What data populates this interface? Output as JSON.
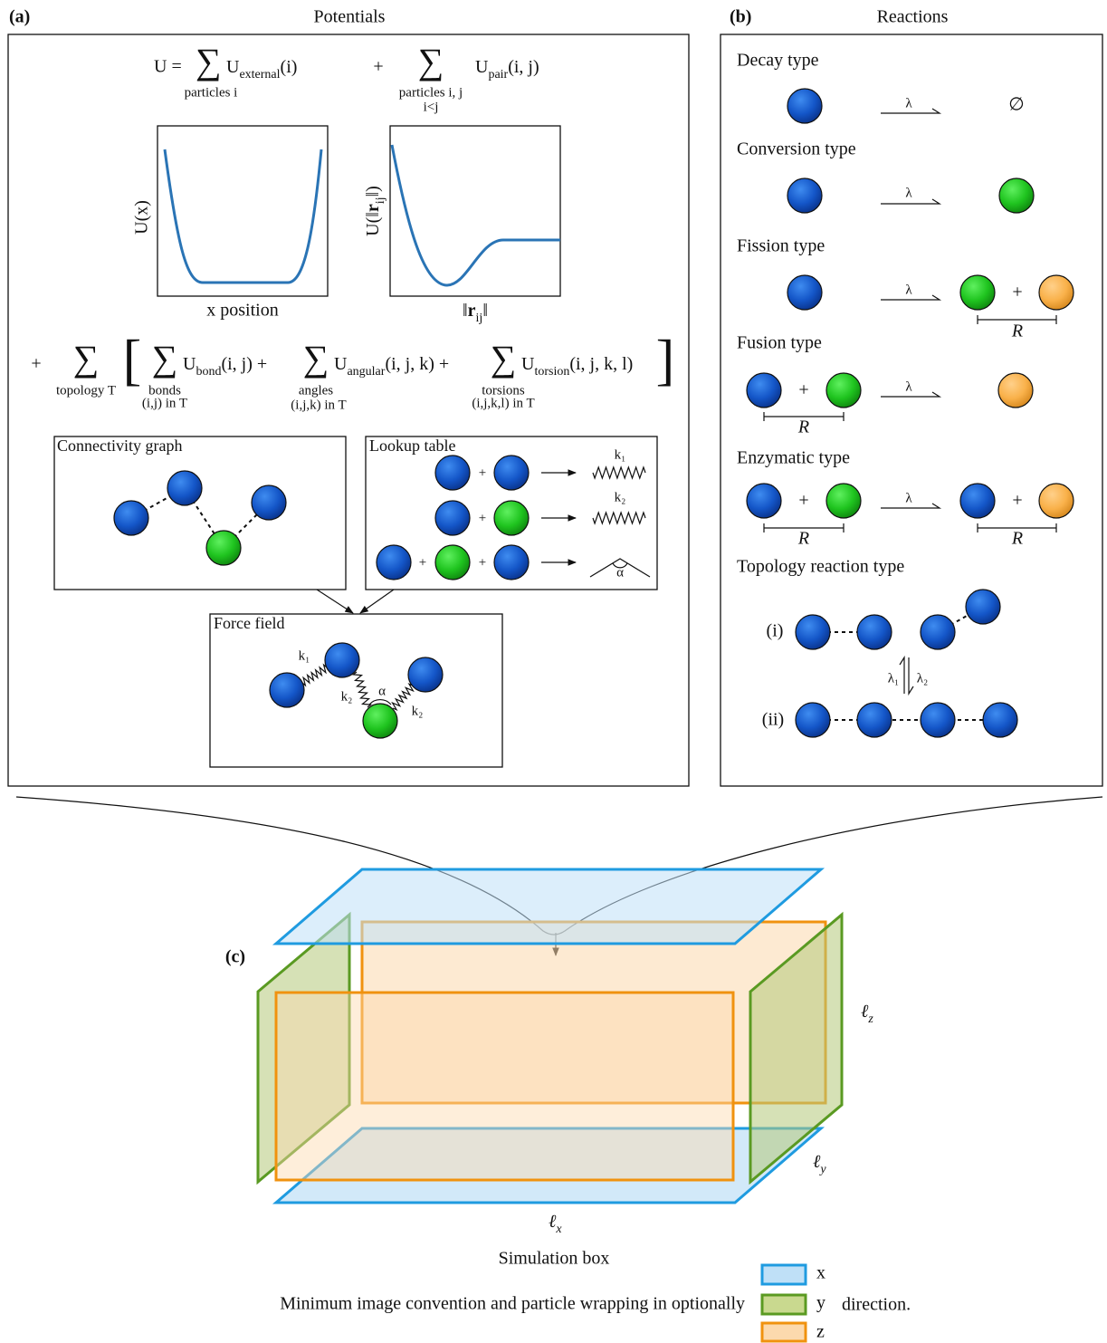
{
  "panel_a": {
    "label": "(a)",
    "title": "Potentials",
    "external_sum": {
      "lhs": "U =",
      "sum": "∑",
      "term": "U",
      "sub": "external",
      "args": "(i)",
      "index": "particles i"
    },
    "pair_sum": {
      "plus": "+",
      "sum": "∑",
      "term": "U",
      "sub": "pair",
      "args": "(i, j)",
      "index": "particles i, j",
      "index_2": "i<j"
    },
    "external_plot": {
      "y_label": "U(x)",
      "x_label": "x position"
    },
    "pair_plot": {
      "y_label_open": "U(‖",
      "y_label_r": "r",
      "y_label_sub": "ij",
      "y_label_close": "‖)",
      "x_label_open": "‖",
      "x_label_r": "r",
      "x_label_sub": "ij",
      "x_label_close": "‖"
    },
    "topology_sum": {
      "plus": "+",
      "sum": "∑",
      "index": "topology T",
      "open": "[",
      "close": "]",
      "terms": [
        {
          "sum": "∑",
          "term": "U",
          "sub": "bond",
          "args": "(i, j) +",
          "index": "bonds",
          "index_2": "(i,j) in T"
        },
        {
          "sum": "∑",
          "term": "U",
          "sub": "angular",
          "args": "(i, j, k) +",
          "index": "angles",
          "index_2": "(i,j,k) in T"
        },
        {
          "sum": "∑",
          "term": "U",
          "sub": "torsion",
          "args": "(i, j, k, l)",
          "index": "torsions",
          "index_2": "(i,j,k,l) in T"
        }
      ]
    },
    "connectivity_graph": {
      "title": "Connectivity graph"
    },
    "lookup_table": {
      "title": "Lookup table",
      "rows": [
        {
          "plus": [
            "+"
          ],
          "label": "k₁"
        },
        {
          "plus": [
            "+"
          ],
          "label": "k₂"
        },
        {
          "plus": [
            "+",
            "+"
          ],
          "label": "α"
        }
      ]
    },
    "force_field": {
      "title": "Force field",
      "labels": [
        "k₁",
        "k₂",
        "α",
        "k₂"
      ]
    }
  },
  "panel_b": {
    "label": "(b)",
    "title": "Reactions",
    "reactions": [
      {
        "name": "Decay type",
        "rate": "λ",
        "product": "∅"
      },
      {
        "name": "Conversion type",
        "rate": "λ"
      },
      {
        "name": "Fission type",
        "rate": "λ",
        "plus": [
          "+"
        ],
        "distance": [
          "R"
        ]
      },
      {
        "name": "Fusion type",
        "rate": "λ",
        "plus": [
          "+"
        ],
        "distance": [
          "R"
        ]
      },
      {
        "name": "Enzymatic type",
        "rate": "λ",
        "plus": [
          "+",
          "+"
        ],
        "distance": [
          "R",
          "R"
        ]
      },
      {
        "name": "Topology reaction type",
        "states": [
          "(i)",
          "(ii)"
        ],
        "rates": [
          "λ₁",
          "λ₂"
        ]
      }
    ]
  },
  "panel_c": {
    "label": "(c)",
    "lengths": [
      {
        "symbol": "ℓ",
        "sub": "z"
      },
      {
        "symbol": "ℓ",
        "sub": "y"
      },
      {
        "symbol": "ℓ",
        "sub": "x"
      }
    ],
    "title": "Simulation box",
    "caption": "Minimum image convention and particle wrapping in optionally",
    "legend": [
      "x",
      "y",
      "z"
    ],
    "caption_end": "direction."
  }
}
